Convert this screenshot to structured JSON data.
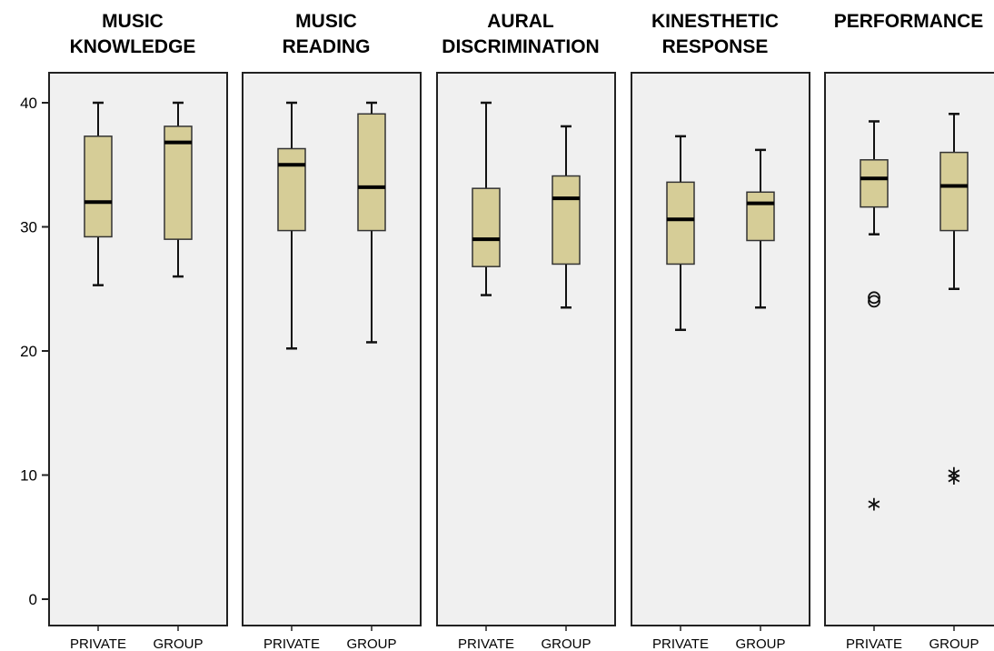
{
  "chart_data": {
    "type": "boxplot",
    "y_axis": {
      "ylim": [
        0,
        40
      ],
      "ticks": [
        0,
        10,
        20,
        30,
        40
      ],
      "tick_labels": [
        "0",
        "10",
        "20",
        "30",
        "40"
      ]
    },
    "categories": [
      "PRIVATE",
      "GROUP"
    ],
    "colors": {
      "box_fill": "#d6cd97",
      "box_stroke": "#333333",
      "panel_fill": "#f0f0f0",
      "panel_stroke": "#222222"
    },
    "grid": false,
    "panels": [
      {
        "title_lines": [
          "MUSIC",
          "KNOWLEDGE"
        ],
        "boxes": [
          {
            "category": "PRIVATE",
            "min": 25.3,
            "q1": 29.2,
            "median": 32.0,
            "q3": 37.3,
            "max": 40.0,
            "outliers": [],
            "extremes": []
          },
          {
            "category": "GROUP",
            "min": 26.0,
            "q1": 29.0,
            "median": 36.8,
            "q3": 38.1,
            "max": 40.0,
            "outliers": [],
            "extremes": []
          }
        ]
      },
      {
        "title_lines": [
          "MUSIC",
          "READING"
        ],
        "boxes": [
          {
            "category": "PRIVATE",
            "min": 20.2,
            "q1": 29.7,
            "median": 35.0,
            "q3": 36.3,
            "max": 40.0,
            "outliers": [],
            "extremes": []
          },
          {
            "category": "GROUP",
            "min": 20.7,
            "q1": 29.7,
            "median": 33.2,
            "q3": 39.1,
            "max": 40.0,
            "outliers": [],
            "extremes": []
          }
        ]
      },
      {
        "title_lines": [
          "AURAL",
          "DISCRIMINATION"
        ],
        "boxes": [
          {
            "category": "PRIVATE",
            "min": 24.5,
            "q1": 26.8,
            "median": 29.0,
            "q3": 33.1,
            "max": 40.0,
            "outliers": [],
            "extremes": []
          },
          {
            "category": "GROUP",
            "min": 23.5,
            "q1": 27.0,
            "median": 32.3,
            "q3": 34.1,
            "max": 38.1,
            "outliers": [],
            "extremes": []
          }
        ]
      },
      {
        "title_lines": [
          "KINESTHETIC",
          "RESPONSE"
        ],
        "boxes": [
          {
            "category": "PRIVATE",
            "min": 21.7,
            "q1": 27.0,
            "median": 30.6,
            "q3": 33.6,
            "max": 37.3,
            "outliers": [],
            "extremes": []
          },
          {
            "category": "GROUP",
            "min": 23.5,
            "q1": 28.9,
            "median": 31.9,
            "q3": 32.8,
            "max": 36.2,
            "outliers": [],
            "extremes": []
          }
        ]
      },
      {
        "title_lines": [
          "PERFORMANCE"
        ],
        "boxes": [
          {
            "category": "PRIVATE",
            "min": 29.4,
            "q1": 31.6,
            "median": 33.9,
            "q3": 35.4,
            "max": 38.5,
            "outliers": [
              24.3,
              24.0
            ],
            "extremes": [
              7.8
            ]
          },
          {
            "category": "GROUP",
            "min": 25.0,
            "q1": 29.7,
            "median": 33.3,
            "q3": 36.0,
            "max": 39.1,
            "outliers": [],
            "extremes": [
              10.3,
              9.9
            ]
          }
        ]
      }
    ]
  }
}
